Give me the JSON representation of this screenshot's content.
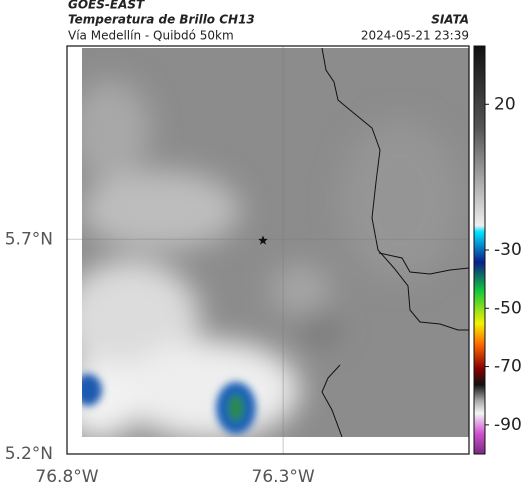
{
  "header": {
    "title": "GOES-EAST",
    "subtitle": "Temperatura de Brillo CH13",
    "location": "Vía Medellín - Quibdó 50km",
    "source": "SIATA",
    "timestamp": "2024-05-21 23:39"
  },
  "map": {
    "xlim": [
      -76.8,
      -75.87
    ],
    "ylim": [
      5.2,
      6.15
    ],
    "xticks": [
      {
        "value": -76.8,
        "label": "76.8°W"
      },
      {
        "value": -76.3,
        "label": "76.3°W"
      }
    ],
    "yticks": [
      {
        "value": 5.2,
        "label": "5.2°N"
      },
      {
        "value": 5.7,
        "label": "5.7°N"
      }
    ],
    "grid": true
  },
  "colorbar": {
    "lim": [
      -100,
      40
    ],
    "ticks": [
      20,
      -30,
      -50,
      -70,
      -90
    ]
  }
}
